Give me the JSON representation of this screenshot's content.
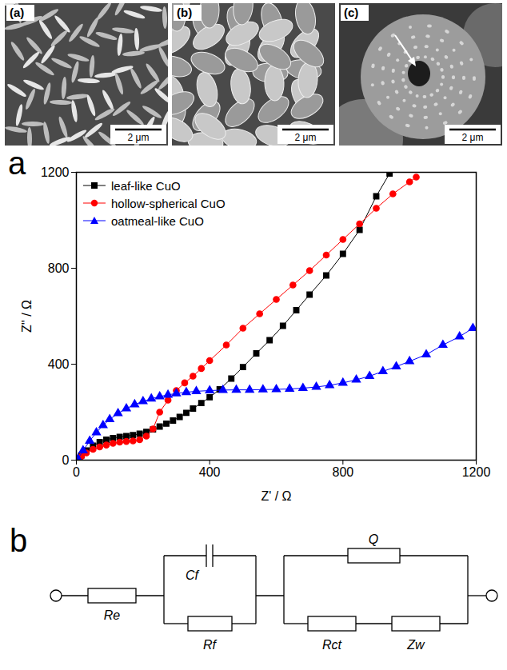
{
  "chart_data": {
    "type": "line",
    "panel_label": "a",
    "x_label": "Z' / Ω",
    "y_label": "Z'' / Ω",
    "xlim": [
      0,
      1200
    ],
    "xticks": [
      0,
      400,
      800,
      1200
    ],
    "ylim": [
      0,
      1200
    ],
    "yticks": [
      0,
      400,
      800,
      1200
    ],
    "grid": false,
    "legend": "upper left",
    "series": [
      {
        "name": "leaf-like CuO",
        "color": "#000000",
        "marker": "square",
        "line_style": "solid",
        "x": [
          5,
          15,
          30,
          50,
          70,
          90,
          110,
          130,
          150,
          170,
          190,
          210,
          230,
          250,
          270,
          290,
          310,
          330,
          350,
          375,
          400,
          430,
          465,
          500,
          540,
          580,
          620,
          660,
          700,
          750,
          800,
          850,
          900,
          940
        ],
        "values": [
          5,
          20,
          40,
          60,
          75,
          85,
          92,
          97,
          100,
          104,
          110,
          118,
          128,
          140,
          152,
          165,
          180,
          197,
          215,
          238,
          262,
          295,
          340,
          388,
          445,
          500,
          560,
          625,
          690,
          770,
          860,
          960,
          1100,
          1195
        ]
      },
      {
        "name": "hollow-spherical CuO",
        "color": "#ff0000",
        "marker": "circle",
        "line_style": "solid",
        "x": [
          5,
          15,
          30,
          50,
          70,
          90,
          110,
          130,
          150,
          170,
          190,
          210,
          230,
          250,
          275,
          300,
          325,
          350,
          375,
          400,
          450,
          500,
          550,
          600,
          650,
          700,
          750,
          800,
          850,
          900,
          950,
          1000,
          1020
        ],
        "values": [
          5,
          15,
          30,
          45,
          55,
          63,
          70,
          75,
          78,
          80,
          85,
          100,
          130,
          200,
          250,
          290,
          322,
          350,
          382,
          415,
          480,
          550,
          610,
          670,
          730,
          790,
          855,
          920,
          985,
          1050,
          1110,
          1160,
          1180
        ]
      },
      {
        "name": "oatmeal-like CuO",
        "color": "#0000ff",
        "marker": "triangle",
        "line_style": "solid",
        "x": [
          5,
          20,
          40,
          60,
          80,
          100,
          125,
          150,
          175,
          200,
          225,
          250,
          275,
          300,
          330,
          360,
          400,
          440,
          480,
          520,
          560,
          600,
          640,
          680,
          720,
          760,
          800,
          840,
          880,
          920,
          960,
          1000,
          1050,
          1100,
          1150,
          1190
        ],
        "values": [
          5,
          40,
          80,
          115,
          145,
          170,
          195,
          215,
          232,
          245,
          256,
          265,
          272,
          278,
          283,
          287,
          290,
          292,
          293,
          293,
          294,
          295,
          297,
          300,
          305,
          312,
          322,
          335,
          350,
          370,
          390,
          412,
          440,
          480,
          515,
          550
        ]
      }
    ]
  },
  "sem_images": [
    {
      "label": "(a)",
      "scale_bar": "2 μm"
    },
    {
      "label": "(b)",
      "scale_bar": "2 μm"
    },
    {
      "label": "(c)",
      "scale_bar": "2 μm"
    }
  ],
  "circuit": {
    "label": "b",
    "elements": [
      "Re",
      "Cf",
      "Rf",
      "Q",
      "Rct",
      "Zw"
    ]
  }
}
